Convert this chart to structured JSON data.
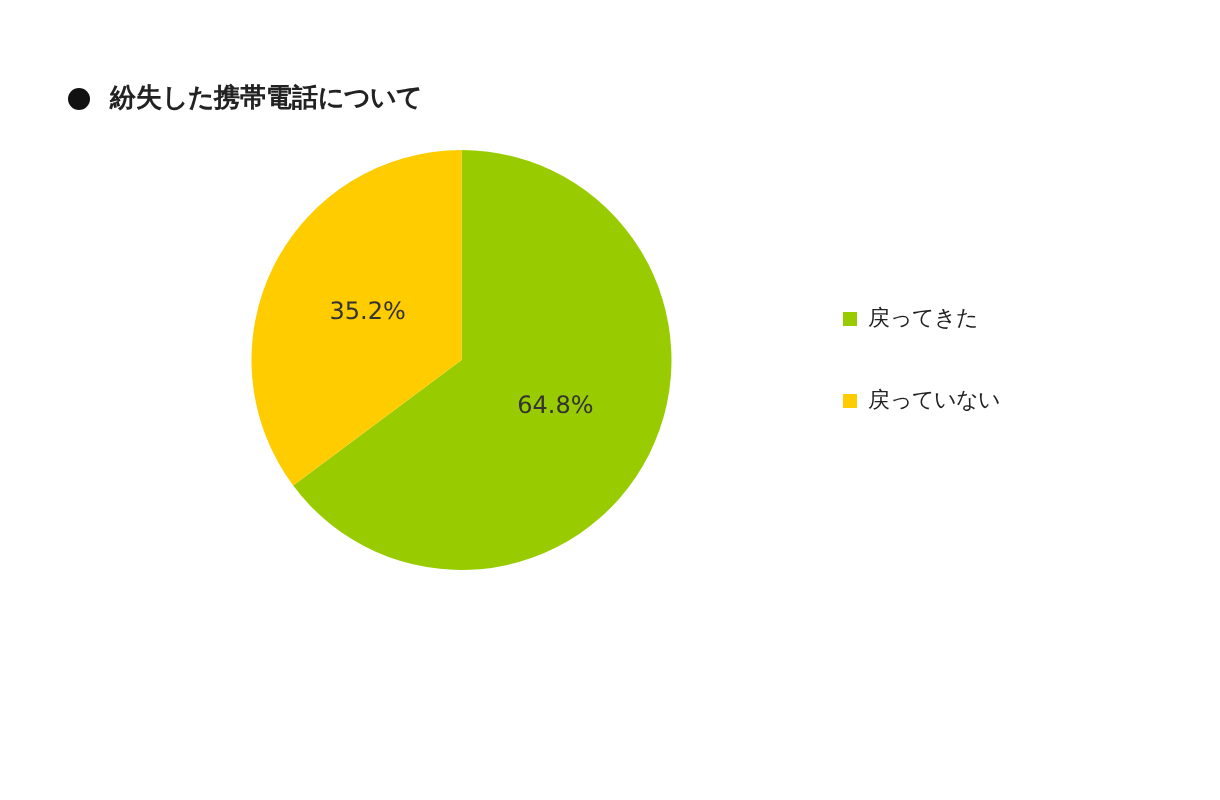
{
  "chart_data": {
    "type": "pie",
    "title": "紛失した携帯電話について",
    "categories": [
      "戻ってきた",
      "戻っていない"
    ],
    "values": [
      64.8,
      35.2
    ],
    "value_labels": [
      "64.8%",
      "35.2%"
    ],
    "colors": [
      "#99cc00",
      "#ffcc00"
    ],
    "legend": "right"
  }
}
